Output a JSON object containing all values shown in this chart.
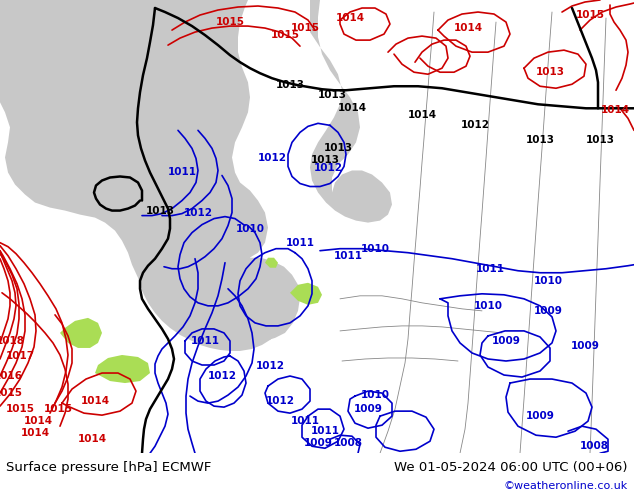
{
  "title_left": "Surface pressure [hPa] ECMWF",
  "title_right": "We 01-05-2024 06:00 UTC (00+06)",
  "credit": "©weatheronline.co.uk",
  "bg_color": "#aadd55",
  "gray_color": "#c8c8c8",
  "footer_text_color": "#000000",
  "credit_color": "#0000cc",
  "blue_color": "#0000cc",
  "red_color": "#cc0000",
  "black_color": "#000000",
  "gray_line_color": "#888888",
  "label_fontsize": 7.5,
  "footer_fontsize": 9.5,
  "credit_fontsize": 8
}
